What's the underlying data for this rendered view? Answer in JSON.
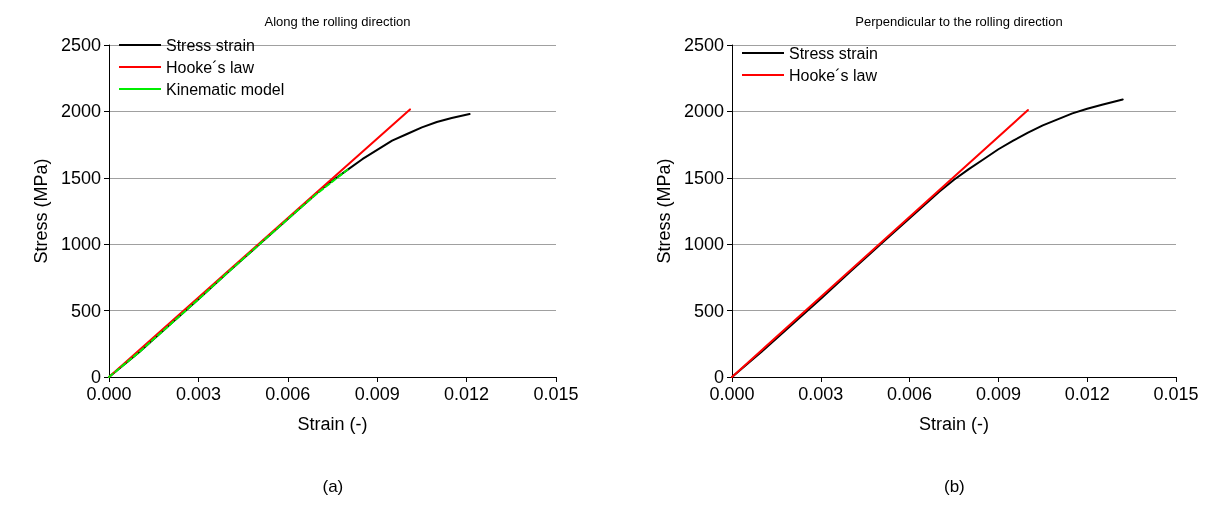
{
  "chart_data": [
    {
      "type": "line",
      "title": "Along the rolling direction",
      "xlabel": "Strain (-)",
      "ylabel": "Stress (MPa)",
      "annotations": [
        "(a)"
      ],
      "series": [
        {
          "name": "Stress strain",
          "color": "#000000",
          "x": [
            0,
            0.001,
            0.002,
            0.003,
            0.004,
            0.005,
            0.006,
            0.007,
            0.0075,
            0.008,
            0.0085,
            0.009,
            0.0095,
            0.01,
            0.0105,
            0.011,
            0.0115,
            0.0121
          ],
          "values": [
            0,
            185,
            385,
            585,
            790,
            990,
            1190,
            1390,
            1480,
            1560,
            1640,
            1710,
            1780,
            1830,
            1880,
            1920,
            1950,
            1980
          ]
        },
        {
          "name": "Hooke´s law",
          "color": "#ff0000",
          "x": [
            0,
            0.0101
          ],
          "values": [
            0,
            2015
          ]
        },
        {
          "name": "Kinematic model",
          "color": "#00ee00",
          "line_style": "dashed",
          "x": [
            0,
            0.001,
            0.002,
            0.003,
            0.004,
            0.005,
            0.006,
            0.007,
            0.008
          ],
          "values": [
            0,
            185,
            385,
            585,
            790,
            990,
            1190,
            1385,
            1560
          ]
        }
      ],
      "xlim": [
        0,
        0.015
      ],
      "xticks": [
        {
          "value": 0,
          "label": "0.000"
        },
        0.003,
        0.006,
        0.009,
        0.012,
        0.015
      ],
      "ylim": [
        0,
        2500
      ],
      "yticks": [
        0,
        500,
        1000,
        1500,
        2000,
        2500
      ],
      "grid": "y",
      "legend": "top left",
      "marker": "none"
    },
    {
      "type": "line",
      "title": "Perpendicular to the rolling direction",
      "xlabel": "Strain (-)",
      "ylabel": "Stress (MPa)",
      "annotations": [
        "(b)"
      ],
      "series": [
        {
          "name": "Stress strain",
          "color": "#000000",
          "x": [
            0,
            0.001,
            0.002,
            0.003,
            0.004,
            0.005,
            0.006,
            0.007,
            0.0075,
            0.008,
            0.0085,
            0.009,
            0.0095,
            0.01,
            0.0105,
            0.011,
            0.0115,
            0.012,
            0.0125,
            0.0132
          ],
          "values": [
            0,
            190,
            390,
            590,
            795,
            995,
            1195,
            1395,
            1485,
            1565,
            1640,
            1715,
            1780,
            1840,
            1895,
            1940,
            1985,
            2020,
            2050,
            2090
          ]
        },
        {
          "name": "Hooke´s law",
          "color": "#ff0000",
          "x": [
            0,
            0.01
          ],
          "values": [
            0,
            2010
          ]
        }
      ],
      "xlim": [
        0,
        0.015
      ],
      "xticks": [
        {
          "value": 0,
          "label": "0.000"
        },
        0.003,
        0.006,
        0.009,
        0.012,
        0.015
      ],
      "ylim": [
        0,
        2500
      ],
      "yticks": [
        0,
        500,
        1000,
        1500,
        2000,
        2500
      ],
      "grid": "y",
      "legend": "top left",
      "marker": "none"
    }
  ]
}
